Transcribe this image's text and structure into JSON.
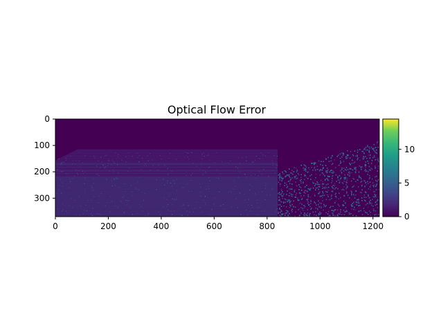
{
  "figure": {
    "title": "Optical Flow Error"
  },
  "chart_data": {
    "type": "heatmap",
    "title": "Optical Flow Error",
    "xlabel": "",
    "ylabel": "",
    "x_range": [
      0,
      1224
    ],
    "y_range": [
      0,
      370
    ],
    "y_inverted": true,
    "x_ticks": [
      0,
      200,
      400,
      600,
      800,
      1000,
      1200
    ],
    "y_ticks": [
      0,
      100,
      200,
      300
    ],
    "colormap": "viridis",
    "colorbar": {
      "range": [
        0,
        14.5
      ],
      "ticks": [
        0,
        5,
        10
      ]
    },
    "description_values": {
      "sky_region_rows": [
        0,
        115
      ],
      "sky_error": 0,
      "ground_error_typical": [
        1,
        4
      ],
      "right_vegetation_x": [
        840,
        1224
      ],
      "right_vegetation_error_typical": [
        2,
        8
      ]
    },
    "grid": false,
    "legend": "none"
  }
}
